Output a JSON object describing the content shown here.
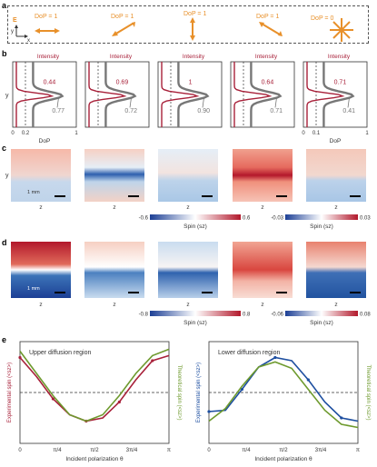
{
  "panels": {
    "a": {
      "label": "a",
      "e_label": "E",
      "axis_y": "y",
      "axis_x": "x",
      "dop": [
        "DoP = 1",
        "DoP = 1",
        "DoP = 1",
        "DoP = 1",
        "DoP = 0"
      ]
    },
    "b": {
      "label": "b",
      "top_label": "Intensity",
      "y_label": "y",
      "x_label": "DoP",
      "ticks_first": [
        "0",
        "0.2",
        "1"
      ],
      "ticks_last": [
        "0",
        "0.1",
        "1"
      ],
      "red_values": [
        "0.44",
        "0.69",
        "1",
        "0.64",
        "0.71"
      ],
      "grey_values": [
        "0.77",
        "0.72",
        "0.90",
        "0.71",
        "0.41"
      ]
    },
    "c": {
      "label": "c",
      "y_label": "y",
      "z_label": "z",
      "scale": "1 mm",
      "cb1_min": "-0.6",
      "cb1_max": "0.6",
      "cb1_label": "Spin (sz)",
      "cb2_min": "-0.03",
      "cb2_max": "0.03",
      "cb2_label": "Spin (sz)"
    },
    "d": {
      "label": "d",
      "z_label": "z",
      "scale": "1 mm",
      "cb1_min": "-0.8",
      "cb1_max": "0.8",
      "cb1_label": "Spin (sz)",
      "cb2_min": "-0.06",
      "cb2_max": "0.08",
      "cb2_label": "Spin (sz)"
    },
    "e": {
      "label": "e",
      "left_title": "Upper diffusion region",
      "right_title": "Lower diffusion region",
      "ylabel_exp": "Experimental spin (<sz>)",
      "ylabel_theo": "Theoretical spin (<sz>)",
      "xlabel": "Incident polarization θ",
      "xticks": [
        "0",
        "π/4",
        "π/2",
        "3π/4",
        "π"
      ]
    }
  },
  "colors": {
    "red": "#a8213a",
    "grey": "#777777",
    "orange": "#e8902a",
    "green": "#6e9a2e",
    "blue": "#1e4fa0"
  },
  "chart_data": [
    {
      "type": "line",
      "title": "Upper diffusion region",
      "xlabel": "Incident polarization θ",
      "ylabel": "Experimental spin (<sz>)",
      "xticks": [
        "0",
        "π/4",
        "π/2",
        "3π/4",
        "π"
      ],
      "series": [
        {
          "values": [
            0.55,
            0.25,
            -0.1,
            -0.35,
            -0.45,
            -0.4,
            -0.15,
            0.2,
            0.5,
            0.58
          ]
        },
        {
          "values": [
            0.65,
            0.3,
            -0.05,
            -0.35,
            -0.45,
            -0.35,
            -0.05,
            0.3,
            0.58,
            0.68
          ]
        }
      ]
    },
    {
      "type": "line",
      "title": "Lower diffusion region",
      "xlabel": "Incident polarization θ",
      "ylabel": "Experimental spin (<sz>)",
      "xticks": [
        "0",
        "π/4",
        "π/2",
        "3π/4",
        "π"
      ],
      "series": [
        {
          "values": [
            -0.3,
            -0.28,
            0.05,
            0.4,
            0.55,
            0.5,
            0.2,
            -0.15,
            -0.4,
            -0.45
          ]
        },
        {
          "values": [
            -0.45,
            -0.25,
            0.1,
            0.4,
            0.48,
            0.38,
            0.05,
            -0.28,
            -0.5,
            -0.55
          ]
        }
      ]
    }
  ]
}
